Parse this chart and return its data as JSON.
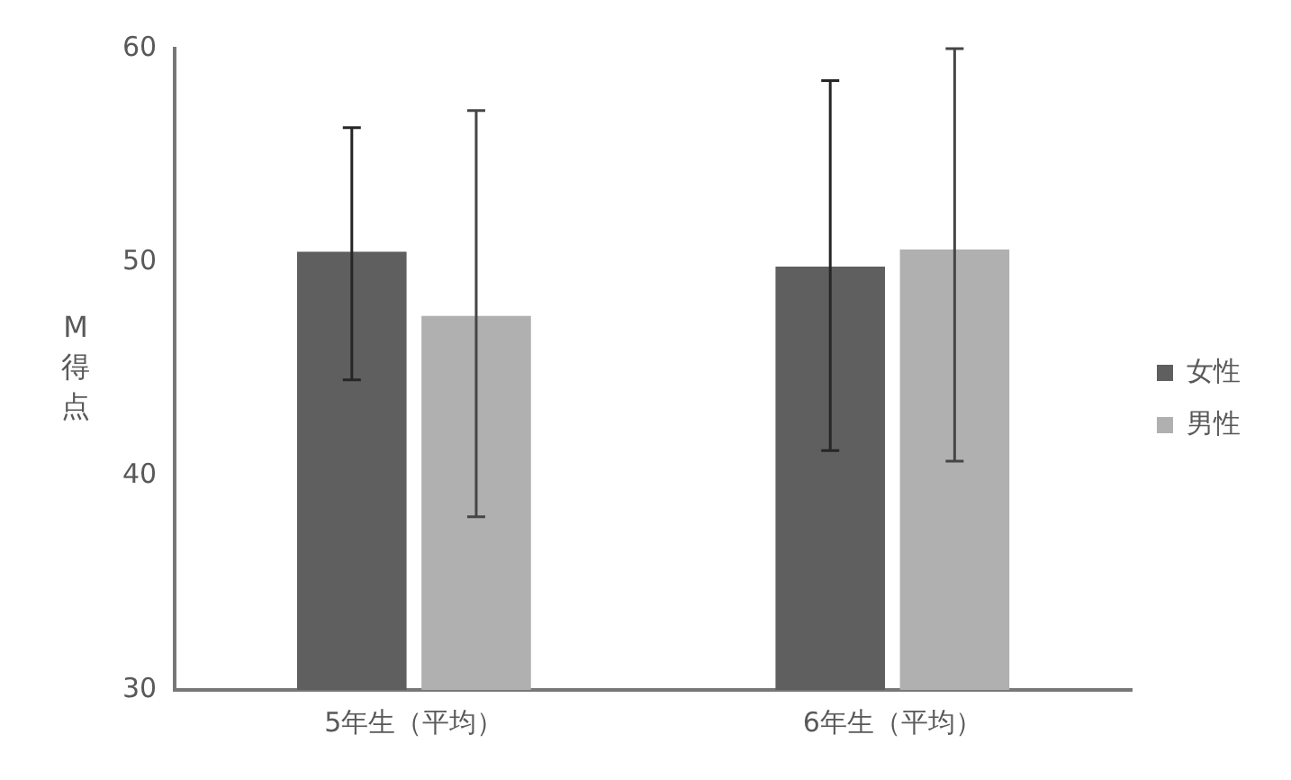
{
  "chart_data": {
    "type": "bar",
    "ylabel": "M得点",
    "categories": [
      "5年生（平均）",
      "6年生（平均）"
    ],
    "series": [
      {
        "name": "女性",
        "color": "#5f5f5f",
        "values": [
          50.5,
          49.8
        ],
        "errors": [
          [
            44.5,
            56.3
          ],
          [
            41.2,
            58.5
          ]
        ]
      },
      {
        "name": "男性",
        "color": "#b0b0b0",
        "values": [
          47.5,
          50.6
        ],
        "errors": [
          [
            38.1,
            57.1
          ],
          [
            40.7,
            60
          ]
        ]
      }
    ],
    "ylim": [
      30,
      60
    ],
    "yticks": [
      30,
      40,
      50,
      60
    ],
    "grid": false,
    "legend": "right"
  }
}
